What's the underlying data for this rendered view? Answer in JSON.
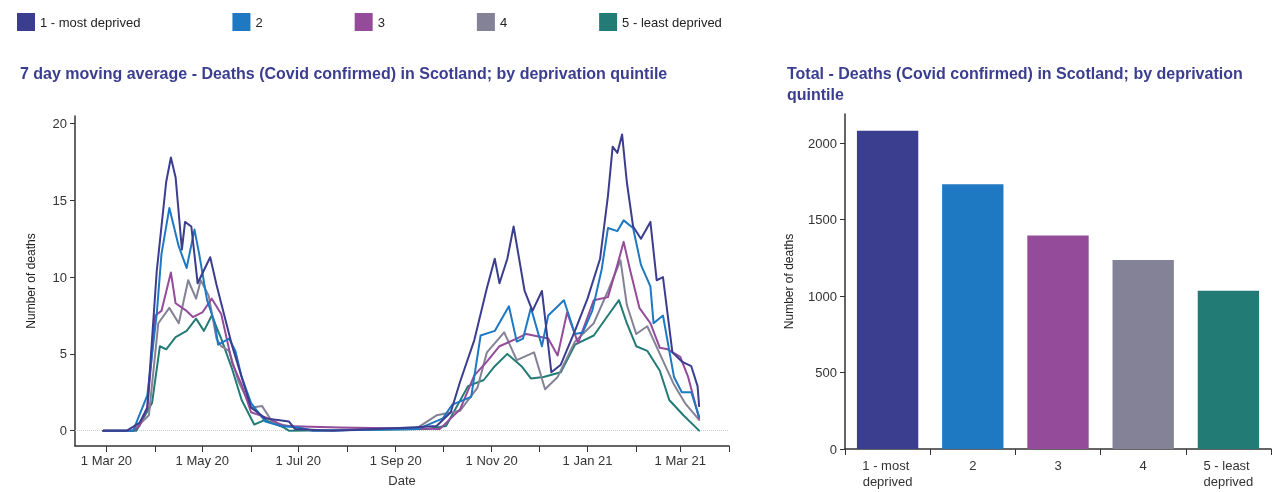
{
  "chart_data": [
    {
      "type": "line",
      "title": "7 day moving average - Deaths (Covid confirmed) in Scotland; by deprivation quintile",
      "xlabel": "Date",
      "ylabel": "Number of deaths",
      "legend": "top",
      "grid": false,
      "marker": "none",
      "line_style": "solid",
      "xlim": [
        "2020-02-10",
        "2021-04-01"
      ],
      "xticks": [
        {
          "value": "2020-03-01",
          "label": "1 Mar 20"
        },
        {
          "value": "2020-04-01",
          "label": null
        },
        {
          "value": "2020-05-01",
          "label": "1 May 20"
        },
        {
          "value": "2020-06-01",
          "label": null
        },
        {
          "value": "2020-07-01",
          "label": "1 Jul 20"
        },
        {
          "value": "2020-08-01",
          "label": null
        },
        {
          "value": "2020-09-01",
          "label": "1 Sep 20"
        },
        {
          "value": "2020-10-01",
          "label": null
        },
        {
          "value": "2020-11-01",
          "label": "1 Nov 20"
        },
        {
          "value": "2020-12-01",
          "label": null
        },
        {
          "value": "2021-01-01",
          "label": "1 Jan 21"
        },
        {
          "value": "2021-02-01",
          "label": null
        },
        {
          "value": "2021-03-01",
          "label": "1 Mar 21"
        },
        {
          "value": "2021-04-01",
          "label": null
        }
      ],
      "ylim": [
        -1,
        20.5
      ],
      "yticks": [
        0,
        5,
        10,
        15,
        20
      ],
      "ref_lines": [
        {
          "axis": "y",
          "value": 0,
          "color": "#cccccc",
          "line_style": "dotted"
        }
      ],
      "series": [
        {
          "name": "1 - most deprived",
          "color": "#3b3d8f",
          "x": [
            "2020-02-28",
            "2020-03-14",
            "2020-03-22",
            "2020-03-27",
            "2020-04-02",
            "2020-04-08",
            "2020-04-11",
            "2020-04-14",
            "2020-04-18",
            "2020-04-20",
            "2020-04-24",
            "2020-04-28",
            "2020-05-06",
            "2020-05-10",
            "2020-05-13",
            "2020-05-20",
            "2020-05-26",
            "2020-06-01",
            "2020-06-10",
            "2020-06-18",
            "2020-06-25",
            "2020-06-29",
            "2020-07-23",
            "2020-09-11",
            "2020-09-27",
            "2020-10-06",
            "2020-10-12",
            "2020-10-21",
            "2020-10-29",
            "2020-11-03",
            "2020-11-06",
            "2020-11-11",
            "2020-11-15",
            "2020-11-22",
            "2020-11-27",
            "2020-12-03",
            "2020-12-09",
            "2020-12-15",
            "2020-12-24",
            "2021-01-01",
            "2021-01-09",
            "2021-01-14",
            "2021-01-17",
            "2021-01-20",
            "2021-01-23",
            "2021-01-26",
            "2021-01-30",
            "2021-02-04",
            "2021-02-10",
            "2021-02-14",
            "2021-02-18",
            "2021-02-24",
            "2021-03-02",
            "2021-03-08",
            "2021-03-12",
            "2021-03-13"
          ],
          "values": [
            0,
            0,
            0.5,
            1.5,
            10.4,
            16.2,
            17.8,
            16.5,
            11.8,
            13.6,
            13.3,
            9.6,
            11.3,
            9.5,
            8.3,
            5.5,
            3.5,
            1.5,
            0.8,
            0.7,
            0.6,
            0.1,
            0,
            0.2,
            0.3,
            1.2,
            3.2,
            5.9,
            9.3,
            11.2,
            9.6,
            11.2,
            13.3,
            9.1,
            7.8,
            9.1,
            3.8,
            4.3,
            6.5,
            8.6,
            11.2,
            15.3,
            18.5,
            18.1,
            19.3,
            16.2,
            13.3,
            12.5,
            13.6,
            9.8,
            10.0,
            5.1,
            4.5,
            4.2,
            2.9,
            1.6
          ]
        },
        {
          "name": "2",
          "color": "#1e78c2",
          "x": [
            "2020-02-28",
            "2020-03-18",
            "2020-03-27",
            "2020-04-02",
            "2020-04-05",
            "2020-04-10",
            "2020-04-16",
            "2020-04-21",
            "2020-04-26",
            "2020-04-29",
            "2020-05-04",
            "2020-05-09",
            "2020-05-11",
            "2020-05-18",
            "2020-05-22",
            "2020-05-26",
            "2020-06-01",
            "2020-06-10",
            "2020-06-20",
            "2020-07-01",
            "2020-07-11",
            "2020-09-15",
            "2020-10-01",
            "2020-10-07",
            "2020-10-19",
            "2020-10-25",
            "2020-11-03",
            "2020-11-12",
            "2020-11-17",
            "2020-11-21",
            "2020-11-26",
            "2020-12-03",
            "2020-12-07",
            "2020-12-17",
            "2020-12-24",
            "2020-12-29",
            "2021-01-04",
            "2021-01-10",
            "2021-01-14",
            "2021-01-20",
            "2021-01-24",
            "2021-01-30",
            "2021-02-04",
            "2021-02-10",
            "2021-02-12",
            "2021-02-18",
            "2021-02-25",
            "2021-03-02",
            "2021-03-08",
            "2021-03-13"
          ],
          "values": [
            0,
            0,
            2.3,
            7.6,
            11.5,
            14.5,
            12.0,
            10.6,
            13.1,
            11.5,
            8.5,
            7.0,
            5.6,
            6.0,
            5.2,
            3.5,
            1.8,
            0.6,
            0.3,
            0.2,
            0,
            0.1,
            0.8,
            1.7,
            2.2,
            6.2,
            6.5,
            8.1,
            5.8,
            6.0,
            8.0,
            5.5,
            7.5,
            8.5,
            6.3,
            6.4,
            7.8,
            10.5,
            13.2,
            13.0,
            13.7,
            13.2,
            10.8,
            9.4,
            7.0,
            7.5,
            3.5,
            2.5,
            2.5,
            0.9
          ]
        },
        {
          "name": "3",
          "color": "#944b9a",
          "x": [
            "2020-02-28",
            "2020-03-18",
            "2020-03-22",
            "2020-03-27",
            "2020-04-01",
            "2020-04-05",
            "2020-04-11",
            "2020-04-14",
            "2020-04-21",
            "2020-04-25",
            "2020-05-01",
            "2020-05-07",
            "2020-05-13",
            "2020-05-20",
            "2020-05-26",
            "2020-06-01",
            "2020-06-12",
            "2020-06-22",
            "2020-07-27",
            "2020-09-29",
            "2020-10-12",
            "2020-10-21",
            "2020-10-29",
            "2020-11-06",
            "2020-11-17",
            "2020-11-23",
            "2020-12-07",
            "2020-12-13",
            "2020-12-19",
            "2020-12-26",
            "2021-01-05",
            "2021-01-14",
            "2021-01-20",
            "2021-01-24",
            "2021-01-28",
            "2021-02-03",
            "2021-02-10",
            "2021-02-16",
            "2021-02-21",
            "2021-03-01",
            "2021-03-06",
            "2021-03-13"
          ],
          "values": [
            0,
            0,
            0.3,
            1.5,
            7.5,
            7.8,
            10.3,
            8.3,
            7.8,
            7.4,
            7.7,
            8.6,
            7.6,
            4.4,
            3.0,
            1.2,
            0.8,
            0.3,
            0.2,
            0.1,
            1.4,
            3.6,
            4.5,
            5.5,
            6.0,
            6.3,
            6.0,
            4.9,
            7.7,
            5.7,
            8.5,
            8.7,
            10.8,
            12.3,
            10.5,
            8.0,
            7.0,
            5.4,
            5.3,
            4.8,
            3.5,
            0.8
          ]
        },
        {
          "name": "4",
          "color": "#838296",
          "x": [
            "2020-02-28",
            "2020-03-18",
            "2020-03-28",
            "2020-04-03",
            "2020-04-10",
            "2020-04-16",
            "2020-04-22",
            "2020-04-27",
            "2020-04-30",
            "2020-05-05",
            "2020-05-10",
            "2020-05-13",
            "2020-05-18",
            "2020-05-24",
            "2020-06-01",
            "2020-06-08",
            "2020-06-15",
            "2020-06-25",
            "2020-07-10",
            "2020-09-15",
            "2020-09-27",
            "2020-10-12",
            "2020-10-23",
            "2020-10-29",
            "2020-11-09",
            "2020-11-17",
            "2020-11-28",
            "2020-12-05",
            "2020-12-13",
            "2020-12-24",
            "2021-01-05",
            "2021-01-14",
            "2021-01-22",
            "2021-01-26",
            "2021-02-01",
            "2021-02-08",
            "2021-02-16",
            "2021-02-25",
            "2021-03-04",
            "2021-03-13"
          ],
          "values": [
            0,
            0,
            1.0,
            7.0,
            8.0,
            7.0,
            9.8,
            8.6,
            9.8,
            8.8,
            6.0,
            5.5,
            5.2,
            3.2,
            1.5,
            1.6,
            0.5,
            0.3,
            0,
            0.2,
            1.0,
            1.3,
            2.8,
            5.1,
            6.4,
            4.6,
            5.1,
            2.7,
            3.5,
            5.8,
            7.0,
            9.1,
            11.1,
            8.2,
            6.3,
            6.8,
            5.0,
            3.0,
            1.8,
            0.7
          ]
        },
        {
          "name": "5 - least deprived",
          "color": "#237b75",
          "x": [
            "2020-02-28",
            "2020-03-20",
            "2020-03-30",
            "2020-04-04",
            "2020-04-08",
            "2020-04-14",
            "2020-04-21",
            "2020-04-27",
            "2020-05-02",
            "2020-05-07",
            "2020-05-13",
            "2020-05-20",
            "2020-05-26",
            "2020-06-03",
            "2020-06-10",
            "2020-06-22",
            "2020-06-25",
            "2020-09-20",
            "2020-10-03",
            "2020-10-17",
            "2020-10-27",
            "2020-11-03",
            "2020-11-11",
            "2020-11-20",
            "2020-11-26",
            "2020-12-04",
            "2020-12-15",
            "2020-12-24",
            "2021-01-05",
            "2021-01-14",
            "2021-01-21",
            "2021-01-26",
            "2021-02-01",
            "2021-02-08",
            "2021-02-16",
            "2021-02-22",
            "2021-03-03",
            "2021-03-13"
          ],
          "values": [
            0,
            0,
            1.8,
            5.5,
            5.3,
            6.1,
            6.5,
            7.3,
            6.5,
            7.5,
            6.0,
            4.0,
            2.0,
            0.4,
            0.7,
            0.2,
            0,
            0.1,
            0.3,
            2.9,
            3.3,
            4.2,
            5.0,
            4.2,
            3.4,
            3.5,
            3.8,
            5.6,
            6.2,
            7.5,
            8.5,
            7.0,
            5.5,
            5.2,
            3.9,
            2.0,
            1.0,
            0
          ]
        }
      ]
    },
    {
      "type": "bar",
      "title": "Total - Deaths (Covid confirmed) in Scotland; by deprivation quintile",
      "ylabel": "Number of deaths",
      "grid": false,
      "categories": [
        "1 - most deprived",
        "2",
        "3",
        "4",
        "5 - least deprived"
      ],
      "values": [
        2080,
        1730,
        1395,
        1235,
        1035
      ],
      "colors": [
        "#3b3d8f",
        "#1e78c2",
        "#944b9a",
        "#838296",
        "#237b75"
      ],
      "ylim": [
        0,
        2190
      ],
      "yticks": [
        0,
        500,
        1000,
        1500,
        2000
      ]
    }
  ]
}
